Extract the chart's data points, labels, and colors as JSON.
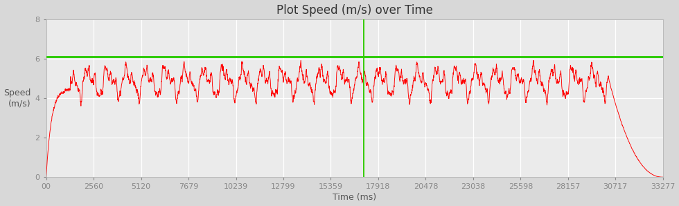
{
  "title": "Plot Speed (m/s) over Time",
  "xlabel": "Time (ms)",
  "ylabel": "Speed\n(m/s)",
  "xlim": [
    0,
    33277
  ],
  "ylim": [
    0,
    8
  ],
  "yticks": [
    0,
    2,
    4,
    6,
    8
  ],
  "xtick_labels": [
    "00",
    "2560",
    "5120",
    "7679",
    "10239",
    "12799",
    "15359",
    "17918",
    "20478",
    "23038",
    "25598",
    "28157",
    "30717",
    "33277"
  ],
  "xtick_values": [
    0,
    2560,
    5120,
    7679,
    10239,
    12799,
    15359,
    17918,
    20478,
    23038,
    25598,
    28157,
    30717,
    33277
  ],
  "line_color": "#ff0000",
  "hline_color": "#33cc00",
  "hline_value": 6.1,
  "vline_color": "#33cc00",
  "vline_x": 17138,
  "fig_bg_color": "#d8d8d8",
  "plot_bg_color": "#ebebeb",
  "grid_color": "#ffffff",
  "title_fontsize": 12,
  "label_fontsize": 9,
  "tick_fontsize": 8,
  "total_time_ms": 33277,
  "accel_end_ms": 1300,
  "decel_start_ms": 30350,
  "cruise_base": 4.85,
  "cruise_amp": 0.55,
  "decel_end_speed": 0.0
}
